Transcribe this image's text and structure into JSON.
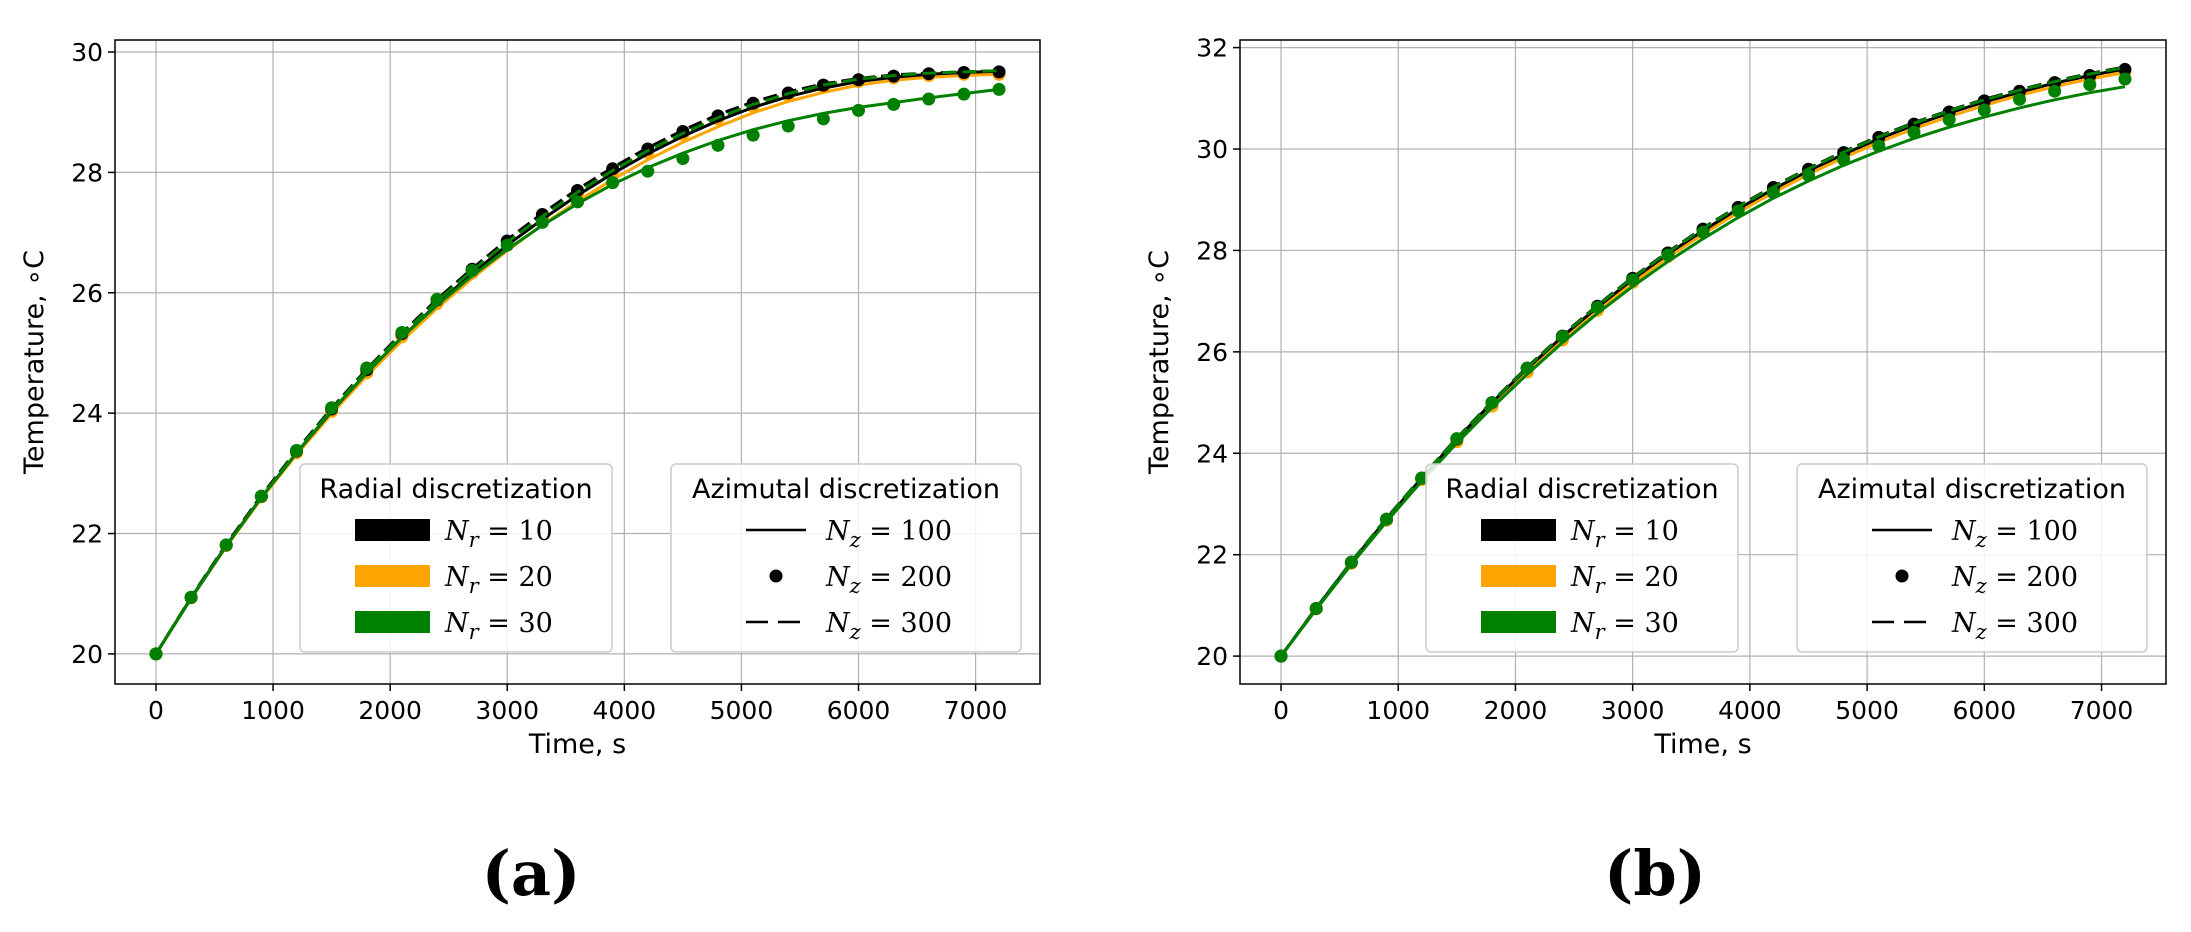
{
  "chart_data": [
    {
      "type": "line",
      "caption": "(a)",
      "xlabel": "Time, s",
      "ylabel": "Temperature, ∘C",
      "xlim": [
        -350,
        7550
      ],
      "ylim": [
        19.5,
        30.2
      ],
      "xticks": [
        0,
        1000,
        2000,
        3000,
        4000,
        5000,
        6000,
        7000
      ],
      "yticks": [
        20,
        22,
        24,
        26,
        28,
        30
      ],
      "grid": true,
      "legend_radial": {
        "title": "Radial discretization",
        "placement": "lower-center",
        "entries": [
          {
            "label": "N",
            "sub": "r",
            "eq": " = 10",
            "color": "#000000"
          },
          {
            "label": "N",
            "sub": "r",
            "eq": " = 20",
            "color": "#FFA500"
          },
          {
            "label": "N",
            "sub": "r",
            "eq": " = 30",
            "color": "#008000"
          }
        ]
      },
      "legend_azimutal": {
        "title": "Azimutal discretization",
        "placement": "lower-right",
        "entries": [
          {
            "label": "N",
            "sub": "z",
            "eq": " = 100",
            "style": "solid"
          },
          {
            "label": "N",
            "sub": "z",
            "eq": " = 200",
            "style": "dot"
          },
          {
            "label": "N",
            "sub": "z",
            "eq": " = 300",
            "style": "dashed"
          }
        ]
      },
      "x": [
        0,
        300,
        600,
        900,
        1200,
        1500,
        1800,
        2100,
        2400,
        2700,
        3000,
        3300,
        3600,
        3900,
        4200,
        4500,
        4800,
        5100,
        5400,
        5700,
        6000,
        6300,
        6600,
        6900,
        7200
      ],
      "series": [
        {
          "name": "Nr=10, Nz=100",
          "color": "#000000",
          "style": "solid",
          "values": [
            20.0,
            20.93,
            21.8,
            22.6,
            23.34,
            24.03,
            24.67,
            25.26,
            25.81,
            26.32,
            26.79,
            27.22,
            27.62,
            27.98,
            28.31,
            28.6,
            28.86,
            29.08,
            29.26,
            29.4,
            29.51,
            29.58,
            29.63,
            29.66,
            29.68
          ]
        },
        {
          "name": "Nr=10, Nz=200",
          "color": "#000000",
          "style": "dot",
          "values": [
            20.0,
            20.94,
            21.81,
            22.62,
            23.37,
            24.07,
            24.72,
            25.32,
            25.88,
            26.39,
            26.86,
            27.3,
            27.7,
            28.06,
            28.39,
            28.68,
            28.94,
            29.15,
            29.32,
            29.45,
            29.54,
            29.6,
            29.64,
            29.66,
            29.67
          ]
        },
        {
          "name": "Nr=10, Nz=300",
          "color": "#000000",
          "style": "dashed",
          "values": [
            20.0,
            20.94,
            21.82,
            22.63,
            23.38,
            24.08,
            24.73,
            25.33,
            25.89,
            26.4,
            26.88,
            27.32,
            27.72,
            28.08,
            28.41,
            28.7,
            28.96,
            29.17,
            29.34,
            29.47,
            29.56,
            29.62,
            29.65,
            29.67,
            29.69
          ]
        },
        {
          "name": "Nr=20, Nz=100",
          "color": "#FFA500",
          "style": "solid",
          "values": [
            20.0,
            20.92,
            21.78,
            22.58,
            23.31,
            23.99,
            24.62,
            25.2,
            25.74,
            26.24,
            26.7,
            27.13,
            27.52,
            27.88,
            28.21,
            28.5,
            28.76,
            28.99,
            29.18,
            29.33,
            29.45,
            29.53,
            29.58,
            29.61,
            29.63
          ]
        },
        {
          "name": "Nr=20, Nz=200",
          "color": "#FFA500",
          "style": "dot",
          "values": [
            20.0,
            20.93,
            21.8,
            22.61,
            23.34,
            24.03,
            24.67,
            25.27,
            25.82,
            26.33,
            26.8,
            27.24,
            27.64,
            28.0,
            28.33,
            28.63,
            28.89,
            29.1,
            29.28,
            29.42,
            29.51,
            29.57,
            29.61,
            29.63,
            29.63
          ]
        },
        {
          "name": "Nr=20, Nz=300",
          "color": "#FFA500",
          "style": "dashed",
          "values": [
            20.0,
            20.93,
            21.8,
            22.61,
            23.35,
            24.04,
            24.68,
            25.28,
            25.83,
            26.34,
            26.82,
            27.26,
            27.66,
            28.02,
            28.35,
            28.65,
            28.91,
            29.13,
            29.31,
            29.45,
            29.55,
            29.61,
            29.64,
            29.66,
            29.67
          ]
        },
        {
          "name": "Nr=30, Nz=100",
          "color": "#008000",
          "style": "solid",
          "values": [
            20.0,
            20.92,
            21.79,
            22.6,
            23.34,
            24.04,
            24.67,
            25.26,
            25.79,
            26.28,
            26.72,
            27.12,
            27.48,
            27.8,
            28.08,
            28.32,
            28.53,
            28.71,
            28.86,
            28.98,
            29.08,
            29.16,
            29.24,
            29.31,
            29.38
          ]
        },
        {
          "name": "Nr=30, Nz=200",
          "color": "#008000",
          "style": "dot",
          "values": [
            20.0,
            20.94,
            21.81,
            22.62,
            23.38,
            24.09,
            24.75,
            25.34,
            25.89,
            26.37,
            26.79,
            27.17,
            27.51,
            27.83,
            28.02,
            28.23,
            28.45,
            28.62,
            28.77,
            28.89,
            29.03,
            29.13,
            29.22,
            29.3,
            29.38
          ]
        },
        {
          "name": "Nr=30, Nz=300",
          "color": "#008000",
          "style": "dashed",
          "values": [
            20.0,
            20.93,
            21.8,
            22.61,
            23.36,
            24.06,
            24.71,
            25.31,
            25.86,
            26.37,
            26.84,
            27.27,
            27.67,
            28.03,
            28.36,
            28.65,
            28.91,
            29.13,
            29.31,
            29.45,
            29.55,
            29.61,
            29.65,
            29.67,
            29.69
          ]
        }
      ]
    },
    {
      "type": "line",
      "caption": "(b)",
      "xlabel": "Time, s",
      "ylabel": "Temperature, ∘C",
      "xlim": [
        -350,
        7550
      ],
      "ylim": [
        19.45,
        32.15
      ],
      "xticks": [
        0,
        1000,
        2000,
        3000,
        4000,
        5000,
        6000,
        7000
      ],
      "yticks": [
        20,
        22,
        24,
        26,
        28,
        30,
        32
      ],
      "grid": true,
      "legend_radial": {
        "title": "Radial discretization",
        "placement": "lower-center",
        "entries": [
          {
            "label": "N",
            "sub": "r",
            "eq": " = 10",
            "color": "#000000"
          },
          {
            "label": "N",
            "sub": "r",
            "eq": " = 20",
            "color": "#FFA500"
          },
          {
            "label": "N",
            "sub": "r",
            "eq": " = 30",
            "color": "#008000"
          }
        ]
      },
      "legend_azimutal": {
        "title": "Azimutal discretization",
        "placement": "lower-right",
        "entries": [
          {
            "label": "N",
            "sub": "z",
            "eq": " = 100",
            "style": "solid"
          },
          {
            "label": "N",
            "sub": "z",
            "eq": " = 200",
            "style": "dot"
          },
          {
            "label": "N",
            "sub": "z",
            "eq": " = 300",
            "style": "dashed"
          }
        ]
      },
      "x": [
        0,
        300,
        600,
        900,
        1200,
        1500,
        1800,
        2100,
        2400,
        2700,
        3000,
        3300,
        3600,
        3900,
        4200,
        4500,
        4800,
        5100,
        5400,
        5700,
        6000,
        6300,
        6600,
        6900,
        7200
      ],
      "series": [
        {
          "name": "Nr=10, Nz=100",
          "color": "#000000",
          "style": "solid",
          "values": [
            20.0,
            20.94,
            21.85,
            22.7,
            23.51,
            24.28,
            25.0,
            25.67,
            26.3,
            26.88,
            27.43,
            27.93,
            28.39,
            28.82,
            29.21,
            29.57,
            29.9,
            30.2,
            30.47,
            30.71,
            30.93,
            31.12,
            31.3,
            31.45,
            31.58
          ]
        },
        {
          "name": "Nr=10, Nz=200",
          "color": "#000000",
          "style": "dot",
          "values": [
            20.0,
            20.94,
            21.85,
            22.7,
            23.51,
            24.28,
            25.0,
            25.68,
            26.31,
            26.9,
            27.45,
            27.95,
            28.42,
            28.85,
            29.24,
            29.6,
            29.93,
            30.23,
            30.49,
            30.73,
            30.95,
            31.14,
            31.31,
            31.45,
            31.57
          ]
        },
        {
          "name": "Nr=10, Nz=300",
          "color": "#000000",
          "style": "dashed",
          "values": [
            20.0,
            20.95,
            21.86,
            22.72,
            23.53,
            24.3,
            25.02,
            25.7,
            26.33,
            26.92,
            27.47,
            27.97,
            28.44,
            28.87,
            29.26,
            29.62,
            29.95,
            30.25,
            30.52,
            30.76,
            30.98,
            31.17,
            31.34,
            31.49,
            31.62
          ]
        },
        {
          "name": "Nr=20, Nz=100",
          "color": "#FFA500",
          "style": "solid",
          "values": [
            20.0,
            20.93,
            21.83,
            22.68,
            23.48,
            24.24,
            24.95,
            25.62,
            26.24,
            26.82,
            27.36,
            27.86,
            28.32,
            28.75,
            29.14,
            29.5,
            29.83,
            30.13,
            30.4,
            30.64,
            30.86,
            31.06,
            31.23,
            31.38,
            31.51
          ]
        },
        {
          "name": "Nr=20, Nz=200",
          "color": "#FFA500",
          "style": "dot",
          "values": [
            20.0,
            20.93,
            21.83,
            22.68,
            23.48,
            24.23,
            24.93,
            25.6,
            26.23,
            26.82,
            27.37,
            27.88,
            28.35,
            28.78,
            29.17,
            29.53,
            29.86,
            30.16,
            30.43,
            30.67,
            30.89,
            31.08,
            31.25,
            31.4,
            31.52
          ]
        },
        {
          "name": "Nr=20, Nz=300",
          "color": "#FFA500",
          "style": "dashed",
          "values": [
            20.0,
            20.94,
            21.84,
            22.69,
            23.5,
            24.26,
            24.98,
            25.65,
            26.28,
            26.87,
            27.42,
            27.92,
            28.39,
            28.82,
            29.21,
            29.57,
            29.9,
            30.2,
            30.47,
            30.71,
            30.93,
            31.12,
            31.29,
            31.44,
            31.57
          ]
        },
        {
          "name": "Nr=30, Nz=100",
          "color": "#008000",
          "style": "solid",
          "values": [
            20.0,
            20.92,
            21.81,
            22.65,
            23.45,
            24.2,
            24.9,
            25.56,
            26.18,
            26.76,
            27.29,
            27.78,
            28.23,
            28.65,
            29.03,
            29.37,
            29.68,
            29.96,
            30.21,
            30.43,
            30.63,
            30.81,
            30.97,
            31.11,
            31.23
          ]
        },
        {
          "name": "Nr=30, Nz=200",
          "color": "#008000",
          "style": "dot",
          "values": [
            20.0,
            20.94,
            21.85,
            22.7,
            23.51,
            24.29,
            25.0,
            25.68,
            26.3,
            26.88,
            27.42,
            27.91,
            28.36,
            28.78,
            29.14,
            29.48,
            29.79,
            30.06,
            30.33,
            30.58,
            30.77,
            30.98,
            31.14,
            31.27,
            31.38
          ]
        },
        {
          "name": "Nr=30, Nz=300",
          "color": "#008000",
          "style": "dashed",
          "values": [
            20.0,
            20.94,
            21.85,
            22.71,
            23.52,
            24.29,
            25.01,
            25.69,
            26.32,
            26.91,
            27.46,
            27.96,
            28.43,
            28.86,
            29.25,
            29.61,
            29.94,
            30.24,
            30.51,
            30.75,
            30.97,
            31.16,
            31.33,
            31.48,
            31.61
          ]
        }
      ]
    }
  ]
}
